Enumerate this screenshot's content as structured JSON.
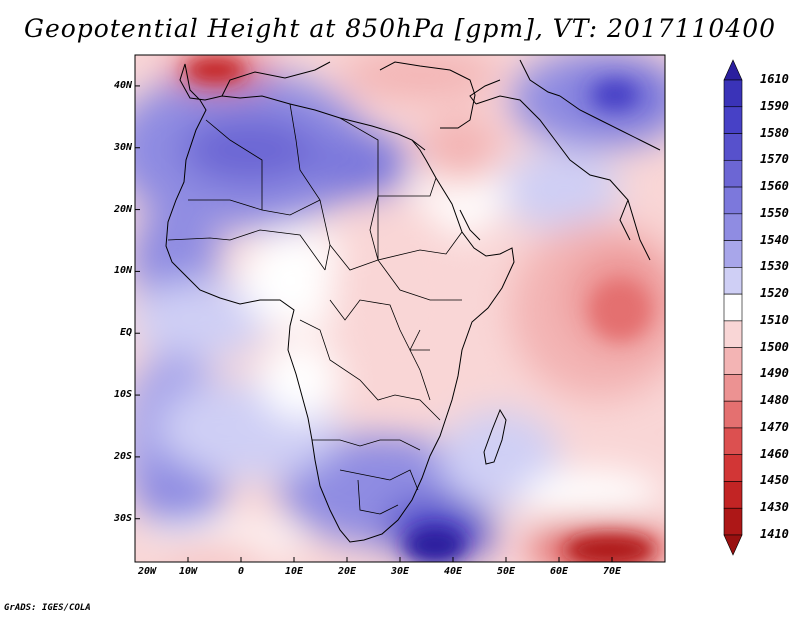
{
  "title": "Geopotential Height at 850hPa [gpm], VT: 2017110400",
  "footer": "GrADS: IGES/COLA",
  "map": {
    "region": "Africa and western Indian Ocean",
    "variable": "850hPa geopotential height",
    "units": "gpm",
    "lon_range": [
      -20,
      80
    ],
    "lat_range": [
      -37,
      45
    ],
    "lat_labels": [
      {
        "value": 40,
        "text": "40N"
      },
      {
        "value": 30,
        "text": "30N"
      },
      {
        "value": 20,
        "text": "20N"
      },
      {
        "value": 10,
        "text": "10N"
      },
      {
        "value": 0,
        "text": "EQ"
      },
      {
        "value": -10,
        "text": "10S"
      },
      {
        "value": -20,
        "text": "20S"
      },
      {
        "value": -30,
        "text": "30S"
      }
    ],
    "lon_labels": [
      {
        "value": -20,
        "text": "20W"
      },
      {
        "value": -10,
        "text": "10W"
      },
      {
        "value": 0,
        "text": "0"
      },
      {
        "value": 10,
        "text": "10E"
      },
      {
        "value": 20,
        "text": "20E"
      },
      {
        "value": 30,
        "text": "30E"
      },
      {
        "value": 40,
        "text": "40E"
      },
      {
        "value": 50,
        "text": "50E"
      },
      {
        "value": 60,
        "text": "60E"
      },
      {
        "value": 70,
        "text": "70E"
      }
    ],
    "colorbar": {
      "levels": [
        "1610",
        "1590",
        "1580",
        "1570",
        "1560",
        "1550",
        "1540",
        "1530",
        "1520",
        "1510",
        "1500",
        "1490",
        "1480",
        "1470",
        "1460",
        "1450",
        "1430",
        "1410"
      ],
      "colors": [
        "#2b1f9e",
        "#3a33b8",
        "#4741c6",
        "#5751cc",
        "#6c66d4",
        "#7c78dc",
        "#8f8ce2",
        "#a8a6ea",
        "#cfcff5",
        "#ffffff",
        "#f9d6d6",
        "#f3b4b4",
        "#ec9292",
        "#e47070",
        "#dc5050",
        "#d23636",
        "#c22424",
        "#ad1717",
        "#991010"
      ]
    }
  }
}
